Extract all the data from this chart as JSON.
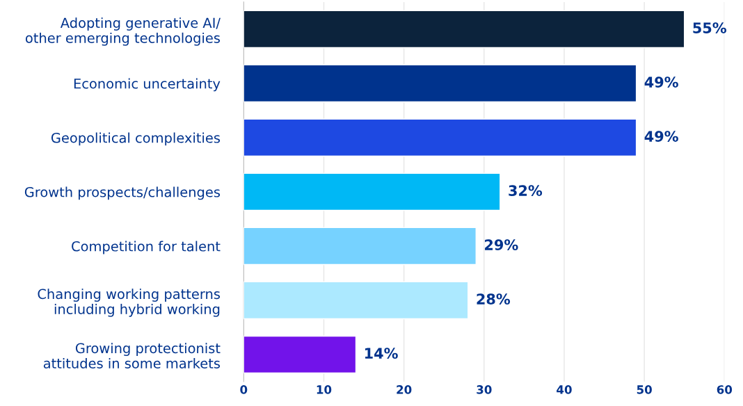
{
  "chart_data": {
    "type": "bar",
    "orientation": "horizontal",
    "categories": [
      "Adopting generative AI/\nother emerging technologies",
      "Economic uncertainty",
      "Geopolitical complexities",
      "Growth prospects/challenges",
      "Competition for talent",
      "Changing working patterns\nincluding hybrid working",
      "Growing protectionist\nattitudes in some markets"
    ],
    "values": [
      55,
      49,
      49,
      32,
      29,
      28,
      14
    ],
    "value_labels": [
      "55%",
      "49%",
      "49%",
      "32%",
      "29%",
      "28%",
      "14%"
    ],
    "colors": [
      "#0c233c",
      "#00338d",
      "#1e49e2",
      "#00b8f5",
      "#76d2ff",
      "#ace9ff",
      "#7213ea"
    ],
    "xlim": [
      0,
      60
    ],
    "xticks": [
      0,
      10,
      20,
      30,
      40,
      50,
      60
    ],
    "grid": "x"
  }
}
